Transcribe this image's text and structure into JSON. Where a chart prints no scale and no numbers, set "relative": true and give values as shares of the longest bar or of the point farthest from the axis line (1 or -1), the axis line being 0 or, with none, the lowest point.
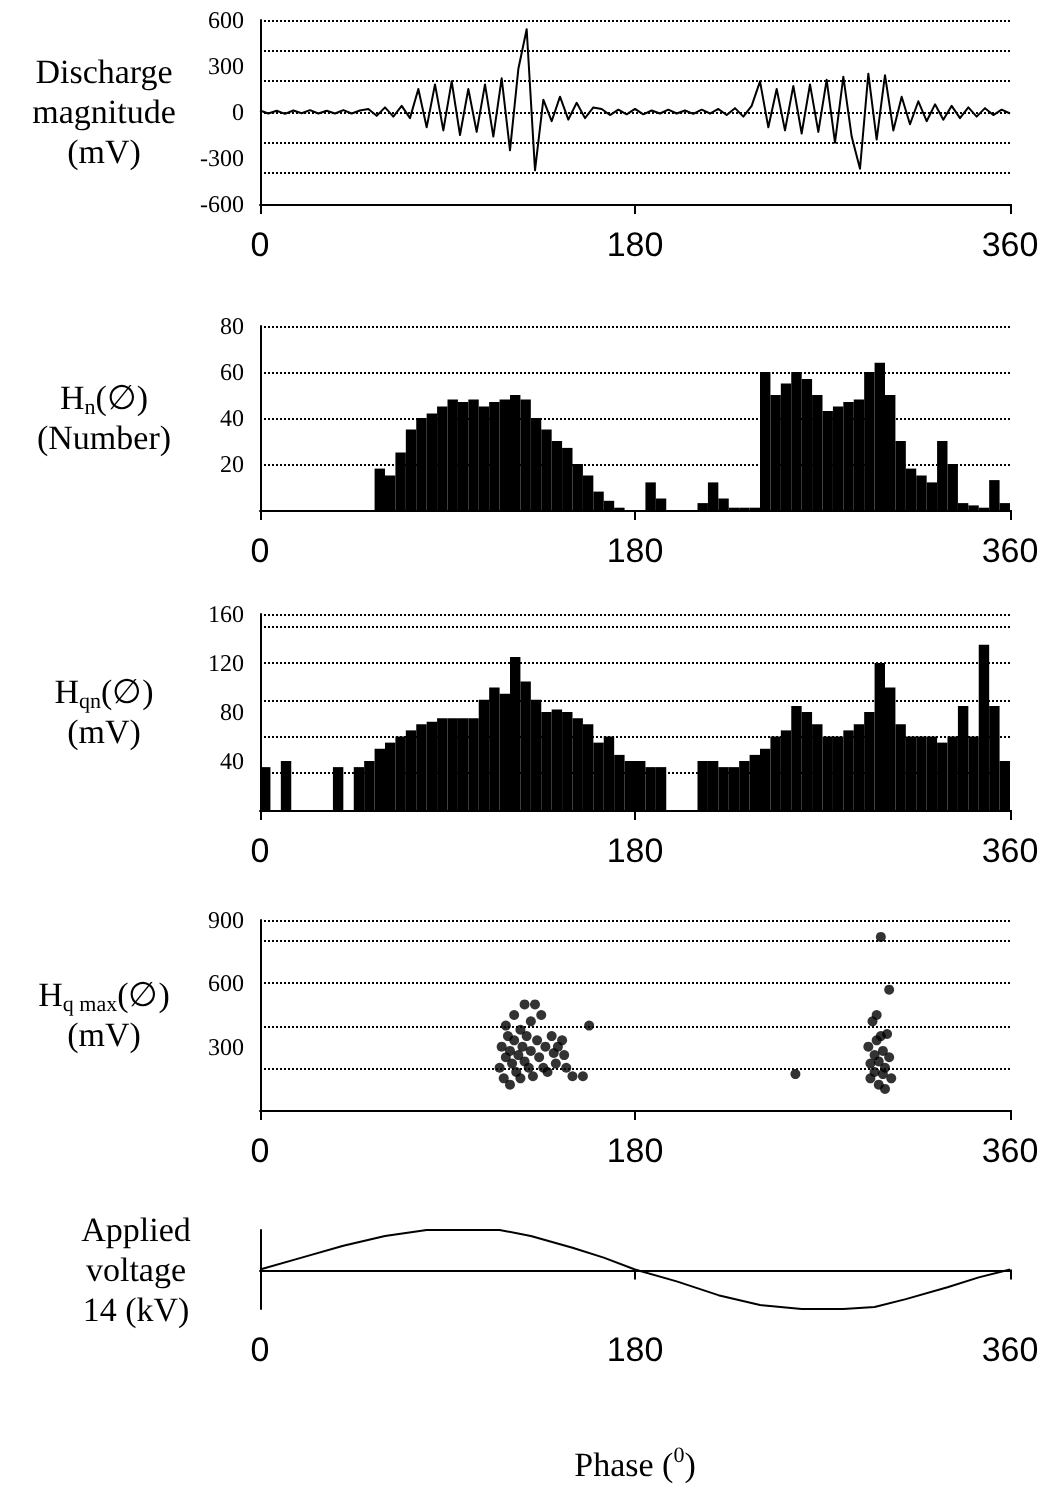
{
  "chart_data": [
    {
      "type": "line",
      "ylabel": "Discharge\nmagnitude\n(mV)",
      "color": "#000000",
      "marker": "none",
      "line_style": "solid",
      "grid": "y",
      "xlim": [
        0,
        360
      ],
      "xticks": [
        0,
        180,
        360
      ],
      "ylim": [
        -600,
        600
      ],
      "yticks": [
        -600,
        -300,
        0,
        300,
        600
      ],
      "x": [
        0,
        4,
        8,
        12,
        16,
        20,
        24,
        28,
        32,
        36,
        40,
        44,
        48,
        52,
        56,
        60,
        64,
        68,
        72,
        76,
        80,
        84,
        88,
        92,
        96,
        100,
        104,
        108,
        112,
        116,
        120,
        124,
        128,
        132,
        136,
        140,
        144,
        148,
        152,
        156,
        160,
        164,
        168,
        172,
        176,
        180,
        184,
        188,
        192,
        196,
        200,
        204,
        208,
        212,
        216,
        220,
        224,
        228,
        232,
        236,
        240,
        244,
        248,
        252,
        256,
        260,
        264,
        268,
        272,
        276,
        280,
        284,
        288,
        292,
        296,
        300,
        304,
        308,
        312,
        316,
        320,
        324,
        328,
        332,
        336,
        340,
        344,
        348,
        352,
        356,
        360
      ],
      "values": [
        10,
        -10,
        8,
        -12,
        10,
        -8,
        12,
        -10,
        8,
        -10,
        12,
        -10,
        10,
        20,
        -25,
        30,
        -30,
        40,
        -40,
        150,
        -100,
        180,
        -120,
        200,
        -150,
        150,
        -130,
        180,
        -160,
        220,
        -250,
        280,
        540,
        -380,
        80,
        -60,
        100,
        -50,
        60,
        -40,
        30,
        20,
        -20,
        15,
        -15,
        20,
        -15,
        10,
        -10,
        15,
        -10,
        10,
        -12,
        15,
        -10,
        20,
        -20,
        25,
        -30,
        40,
        200,
        -100,
        150,
        -120,
        170,
        -140,
        180,
        -130,
        210,
        -200,
        230,
        -160,
        -370,
        250,
        -180,
        240,
        -120,
        100,
        -80,
        70,
        -60,
        50,
        -50,
        40,
        -40,
        30,
        -30,
        25,
        -20,
        15,
        -10
      ]
    },
    {
      "type": "histogram",
      "ylabel": "H$_{n}$(∅)\n(Number)",
      "color": "#000000",
      "grid": "y",
      "xlim": [
        0,
        360
      ],
      "xticks": [
        0,
        180,
        360
      ],
      "ylim": [
        0,
        80
      ],
      "yticks": [
        20,
        40,
        60,
        80
      ],
      "bins": [
        0,
        5,
        10,
        15,
        20,
        25,
        30,
        35,
        40,
        45,
        50,
        55,
        60,
        65,
        70,
        75,
        80,
        85,
        90,
        95,
        100,
        105,
        110,
        115,
        120,
        125,
        130,
        135,
        140,
        145,
        150,
        155,
        160,
        165,
        170,
        175,
        180,
        185,
        190,
        195,
        200,
        205,
        210,
        215,
        220,
        225,
        230,
        235,
        240,
        245,
        250,
        255,
        260,
        265,
        270,
        275,
        280,
        285,
        290,
        295,
        300,
        305,
        310,
        315,
        320,
        325,
        330,
        335,
        340,
        345,
        350,
        355,
        360
      ],
      "values": [
        0,
        0,
        0,
        0,
        0,
        0,
        0,
        0,
        0,
        0,
        0,
        18,
        15,
        25,
        35,
        40,
        42,
        45,
        48,
        47,
        48,
        45,
        47,
        48,
        50,
        48,
        40,
        35,
        30,
        27,
        20,
        15,
        8,
        4,
        1,
        0,
        0,
        12,
        5,
        0,
        0,
        0,
        3,
        12,
        5,
        1,
        1,
        1,
        60,
        50,
        55,
        60,
        57,
        50,
        43,
        45,
        47,
        48,
        60,
        64,
        50,
        30,
        18,
        15,
        12,
        30,
        20,
        3,
        2,
        1,
        13,
        3
      ]
    },
    {
      "type": "histogram",
      "ylabel": "H$_{qn}$(∅)\n(mV)",
      "color": "#000000",
      "grid": "y",
      "xlim": [
        0,
        360
      ],
      "xticks": [
        0,
        180,
        360
      ],
      "ylim": [
        0,
        160
      ],
      "yticks": [
        40,
        80,
        120,
        160
      ],
      "bins": [
        0,
        5,
        10,
        15,
        20,
        25,
        30,
        35,
        40,
        45,
        50,
        55,
        60,
        65,
        70,
        75,
        80,
        85,
        90,
        95,
        100,
        105,
        110,
        115,
        120,
        125,
        130,
        135,
        140,
        145,
        150,
        155,
        160,
        165,
        170,
        175,
        180,
        185,
        190,
        195,
        200,
        205,
        210,
        215,
        220,
        225,
        230,
        235,
        240,
        245,
        250,
        255,
        260,
        265,
        270,
        275,
        280,
        285,
        290,
        295,
        300,
        305,
        310,
        315,
        320,
        325,
        330,
        335,
        340,
        345,
        350,
        355,
        360
      ],
      "values": [
        35,
        0,
        40,
        0,
        0,
        0,
        0,
        35,
        0,
        35,
        40,
        50,
        55,
        60,
        65,
        70,
        72,
        75,
        75,
        75,
        75,
        90,
        100,
        95,
        125,
        105,
        90,
        80,
        82,
        80,
        75,
        70,
        55,
        60,
        45,
        40,
        40,
        35,
        35,
        0,
        0,
        0,
        40,
        40,
        35,
        35,
        40,
        45,
        50,
        60,
        65,
        85,
        80,
        70,
        60,
        60,
        65,
        70,
        80,
        120,
        100,
        70,
        60,
        60,
        60,
        55,
        60,
        85,
        60,
        135,
        85,
        40
      ]
    },
    {
      "type": "scatter",
      "ylabel": "H$_{q max}$(∅)\n(mV)",
      "color": "#000000",
      "marker": "circle",
      "grid": "y",
      "xlim": [
        0,
        360
      ],
      "xticks": [
        0,
        180,
        360
      ],
      "ylim": [
        0,
        900
      ],
      "yticks": [
        300,
        600,
        900
      ],
      "x": [
        115,
        116,
        117,
        118,
        118,
        119,
        120,
        120,
        121,
        122,
        122,
        123,
        124,
        125,
        125,
        126,
        127,
        127,
        128,
        129,
        130,
        130,
        131,
        132,
        133,
        134,
        135,
        136,
        137,
        138,
        140,
        141,
        142,
        143,
        145,
        146,
        147,
        150,
        155,
        158,
        257,
        292,
        293,
        293,
        294,
        295,
        295,
        296,
        296,
        297,
        297,
        298,
        298,
        299,
        299,
        300,
        300,
        301,
        302,
        302,
        303
      ],
      "values": [
        200,
        300,
        150,
        250,
        400,
        350,
        120,
        280,
        220,
        450,
        330,
        180,
        260,
        380,
        150,
        300,
        500,
        230,
        350,
        200,
        420,
        280,
        160,
        500,
        330,
        250,
        450,
        200,
        300,
        180,
        350,
        270,
        220,
        300,
        330,
        260,
        200,
        160,
        160,
        400,
        170,
        300,
        220,
        150,
        420,
        260,
        180,
        450,
        330,
        230,
        120,
        820,
        350,
        280,
        170,
        200,
        100,
        360,
        570,
        250,
        150
      ]
    },
    {
      "type": "line",
      "relative": true,
      "ylabel": "Applied\nvoltage\n14 (kV)",
      "xlabel": "Phase ($^{0}$)",
      "color": "#000000",
      "marker": "none",
      "line_style": "solid",
      "xlim": [
        0,
        360
      ],
      "xticks": [
        0,
        180,
        360
      ],
      "x": [
        0,
        20,
        40,
        60,
        80,
        100,
        115,
        130,
        150,
        165,
        180,
        200,
        220,
        240,
        260,
        280,
        295,
        310,
        330,
        345,
        360
      ],
      "values": [
        0,
        0.3,
        0.6,
        0.85,
        1,
        1,
        1,
        0.85,
        0.55,
        0.3,
        0,
        -0.3,
        -0.65,
        -0.9,
        -1,
        -1,
        -0.95,
        -0.75,
        -0.45,
        -0.2,
        0
      ]
    }
  ]
}
